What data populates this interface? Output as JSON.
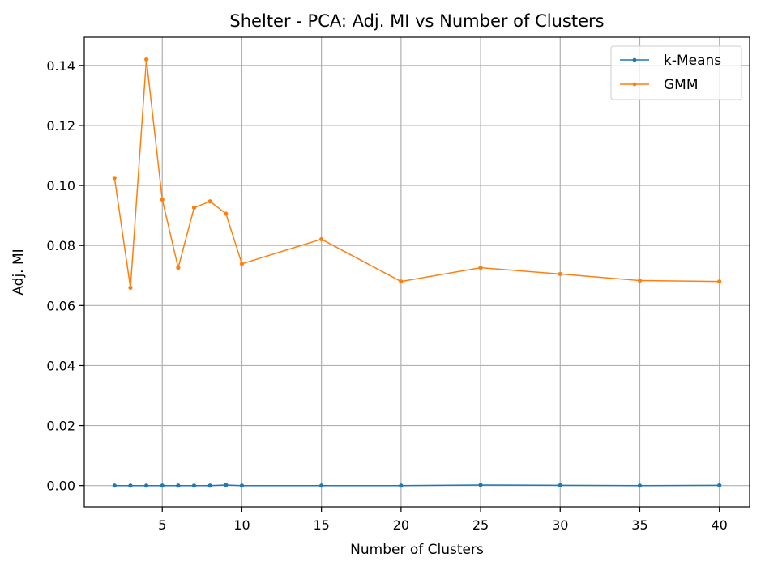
{
  "chart_data": {
    "type": "line",
    "title": "Shelter - PCA: Adj. MI vs Number of Clusters",
    "xlabel": "Number of Clusters",
    "ylabel": "Adj. MI",
    "xlim": [
      0.1,
      41.9
    ],
    "ylim": [
      -0.0071,
      0.1494
    ],
    "xticks": [
      5,
      10,
      15,
      20,
      25,
      30,
      35,
      40
    ],
    "xtick_labels": [
      "5",
      "10",
      "15",
      "20",
      "25",
      "30",
      "35",
      "40"
    ],
    "yticks": [
      0.0,
      0.02,
      0.04,
      0.06,
      0.08,
      0.1,
      0.12,
      0.14
    ],
    "ytick_labels": [
      "0.00",
      "0.02",
      "0.04",
      "0.06",
      "0.08",
      "0.10",
      "0.12",
      "0.14"
    ],
    "grid": true,
    "legend_position": "top-right",
    "x": [
      2,
      3,
      4,
      5,
      6,
      7,
      8,
      9,
      10,
      15,
      20,
      25,
      30,
      35,
      40
    ],
    "series": [
      {
        "name": "k-Means",
        "color": "#1f77b4",
        "values": [
          0.0,
          0.0,
          0.0,
          0.0,
          0.0,
          0.0,
          0.0,
          0.0002,
          0.0,
          0.0,
          0.0,
          0.0002,
          0.0001,
          0.0,
          0.0001
        ]
      },
      {
        "name": "GMM",
        "color": "#ff7f0e",
        "values": [
          0.1025,
          0.0659,
          0.142,
          0.0953,
          0.0726,
          0.0926,
          0.0947,
          0.0906,
          0.0739,
          0.0821,
          0.068,
          0.0726,
          0.0705,
          0.0683,
          0.068
        ]
      }
    ]
  }
}
